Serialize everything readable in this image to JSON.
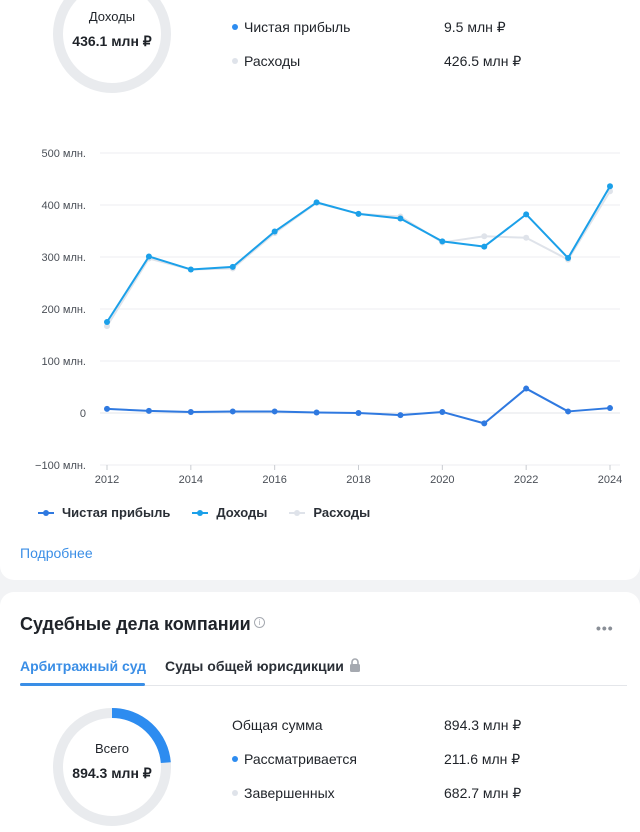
{
  "income_summary": {
    "donut_label": "Доходы",
    "donut_value": "436.1 млн ₽",
    "items": [
      {
        "label": "Чистая прибыль",
        "value": "9.5 млн ₽",
        "color": "#2d8cf0"
      },
      {
        "label": "Расходы",
        "value": "426.5 млн ₽",
        "color": "#dfe3ea"
      }
    ]
  },
  "chart_data": {
    "type": "line",
    "x": [
      2012,
      2013,
      2014,
      2015,
      2016,
      2017,
      2018,
      2019,
      2020,
      2021,
      2022,
      2023,
      2024
    ],
    "x_tick_labels": [
      "2012",
      "2014",
      "2016",
      "2018",
      "2020",
      "2022",
      "2024"
    ],
    "y_tick_labels": [
      "500 млн.",
      "400 млн.",
      "300 млн.",
      "200 млн.",
      "100 млн.",
      "0",
      "−100 млн."
    ],
    "y_ticks": [
      500,
      400,
      300,
      200,
      100,
      0,
      -100
    ],
    "ylim": [
      -100,
      500
    ],
    "grid": true,
    "series": [
      {
        "name": "Чистая прибыль",
        "color": "#2f79e0",
        "values": [
          8,
          4,
          2,
          3,
          3,
          1,
          0,
          -4,
          2,
          -20,
          47,
          3,
          9.5
        ]
      },
      {
        "name": "Доходы",
        "color": "#1ba0e9",
        "values": [
          175,
          301,
          276,
          281,
          349,
          405,
          383,
          374,
          330,
          320,
          382,
          298,
          436.1
        ]
      },
      {
        "name": "Расходы",
        "color": "#dfe3ea",
        "values": [
          167,
          297,
          276,
          278,
          346,
          404,
          383,
          378,
          328,
          340,
          337,
          295,
          426.5
        ]
      }
    ]
  },
  "more_link": "Подробнее",
  "court": {
    "title": "Судебные дела компании",
    "info_icon": "info-icon",
    "more_icon": "•••",
    "tabs": [
      {
        "label": "Арбитражный суд",
        "active": true
      },
      {
        "label": "Суды общей юрисдикции",
        "active": false,
        "locked": true
      }
    ],
    "donut_label": "Всего",
    "donut_value": "894.3 млн ₽",
    "donut_fraction": 0.2366,
    "rows": [
      {
        "label": "Общая сумма",
        "value": "894.3 млн ₽"
      },
      {
        "label": "Рассматривается",
        "value": "211.6 млн ₽",
        "color": "#2d8cf0"
      },
      {
        "label": "Завершенных",
        "value": "682.7 млн ₽",
        "color": "#dfe3ea"
      }
    ]
  }
}
